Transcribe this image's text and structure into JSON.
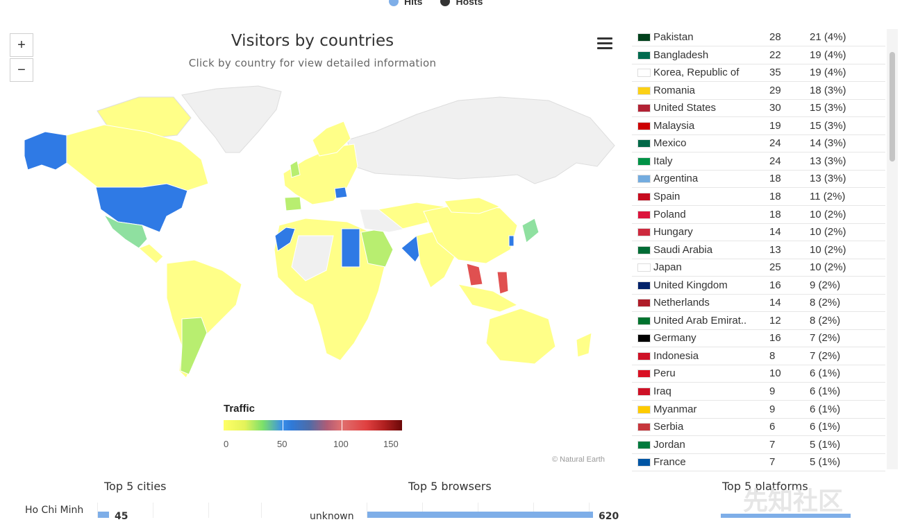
{
  "legend_top": [
    {
      "label": "Hits",
      "color": "#7eaee8"
    },
    {
      "label": "Hosts",
      "color": "#333333"
    }
  ],
  "map": {
    "title": "Visitors by countries",
    "subtitle": "Click by country for view detailed information",
    "zoom_in": "+",
    "zoom_out": "−",
    "credit": "© Natural Earth",
    "traffic_title": "Traffic",
    "traffic_labels": [
      "0",
      "50",
      "100",
      "150"
    ],
    "traffic_range": [
      0,
      150
    ]
  },
  "countries": [
    {
      "name": "Pakistan",
      "hits": "28",
      "hosts": "21 (4%)",
      "flag": "#01411c"
    },
    {
      "name": "Bangladesh",
      "hits": "22",
      "hosts": "19 (4%)",
      "flag": "#006a4e"
    },
    {
      "name": "Korea, Republic of",
      "hits": "35",
      "hosts": "19 (4%)",
      "flag": "#ffffff"
    },
    {
      "name": "Romania",
      "hits": "29",
      "hosts": "18 (3%)",
      "flag": "#fcd116"
    },
    {
      "name": "United States",
      "hits": "30",
      "hosts": "15 (3%)",
      "flag": "#b22234"
    },
    {
      "name": "Malaysia",
      "hits": "19",
      "hosts": "15 (3%)",
      "flag": "#cc0001"
    },
    {
      "name": "Mexico",
      "hits": "24",
      "hosts": "14 (3%)",
      "flag": "#006847"
    },
    {
      "name": "Italy",
      "hits": "24",
      "hosts": "13 (3%)",
      "flag": "#009246"
    },
    {
      "name": "Argentina",
      "hits": "18",
      "hosts": "13 (3%)",
      "flag": "#74acdf"
    },
    {
      "name": "Spain",
      "hits": "18",
      "hosts": "11 (2%)",
      "flag": "#c60b1e"
    },
    {
      "name": "Poland",
      "hits": "18",
      "hosts": "10 (2%)",
      "flag": "#dc143c"
    },
    {
      "name": "Hungary",
      "hits": "14",
      "hosts": "10 (2%)",
      "flag": "#cd2a3e"
    },
    {
      "name": "Saudi Arabia",
      "hits": "13",
      "hosts": "10 (2%)",
      "flag": "#006c35"
    },
    {
      "name": "Japan",
      "hits": "25",
      "hosts": "10 (2%)",
      "flag": "#ffffff"
    },
    {
      "name": "United Kingdom",
      "hits": "16",
      "hosts": "9 (2%)",
      "flag": "#012169"
    },
    {
      "name": "Netherlands",
      "hits": "14",
      "hosts": "8 (2%)",
      "flag": "#ae1c28"
    },
    {
      "name": "United Arab Emirat..",
      "hits": "12",
      "hosts": "8 (2%)",
      "flag": "#00732f"
    },
    {
      "name": "Germany",
      "hits": "16",
      "hosts": "7 (2%)",
      "flag": "#000000"
    },
    {
      "name": "Indonesia",
      "hits": "8",
      "hosts": "7 (2%)",
      "flag": "#ce1126"
    },
    {
      "name": "Peru",
      "hits": "10",
      "hosts": "6 (1%)",
      "flag": "#d91023"
    },
    {
      "name": "Iraq",
      "hits": "9",
      "hosts": "6 (1%)",
      "flag": "#ce1126"
    },
    {
      "name": "Myanmar",
      "hits": "9",
      "hosts": "6 (1%)",
      "flag": "#fecb00"
    },
    {
      "name": "Serbia",
      "hits": "6",
      "hosts": "6 (1%)",
      "flag": "#c6363c"
    },
    {
      "name": "Jordan",
      "hits": "7",
      "hosts": "5 (1%)",
      "flag": "#007a3d"
    },
    {
      "name": "France",
      "hits": "7",
      "hosts": "5 (1%)",
      "flag": "#0055a4"
    }
  ],
  "bottom": {
    "cities_title": "Top 5 cities",
    "browsers_title": "Top 5 browsers",
    "platforms_title": "Top 5 platforms",
    "city_label": "Ho Chi Minh",
    "city_value": "45",
    "browser_label": "unknown",
    "browser_value": "620"
  },
  "watermark": "先知社区"
}
